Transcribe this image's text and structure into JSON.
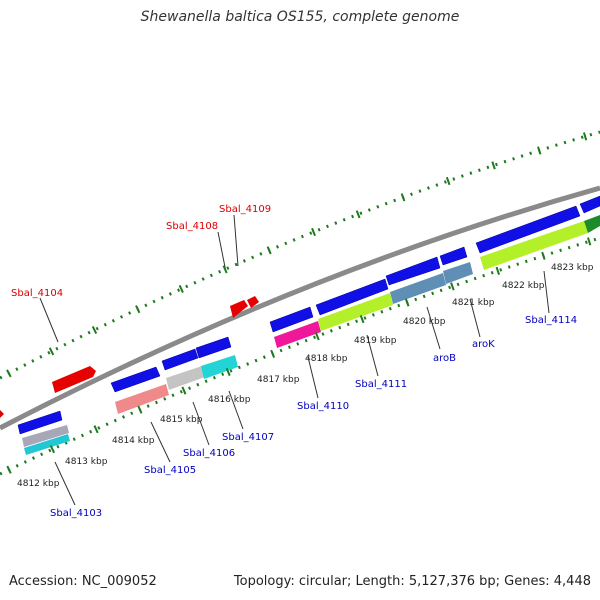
{
  "title": "Shewanella baltica OS155, complete genome",
  "footer": {
    "accession": "Accession: NC_009052",
    "topology": "Topology: circular; Length: 5,127,376 bp; Genes: 4,448"
  },
  "colors": {
    "backbone": "#8a8a8a",
    "tick": "#1f7a1f",
    "label_red": "#dd0000",
    "label_blue": "#0000c0",
    "scale_text": "#222222"
  },
  "scale_labels": [
    "4812 kbp",
    "4813 kbp",
    "4814 kbp",
    "4815 kbp",
    "4816 kbp",
    "4817 kbp",
    "4818 kbp",
    "4819 kbp",
    "4820 kbp",
    "4821 kbp",
    "4822 kbp",
    "4823 kbp"
  ],
  "gene_labels": {
    "forward": [
      "Sbal_4104",
      "Sbal_4108",
      "Sbal_4109"
    ],
    "reverse": [
      "Sbal_4103",
      "Sbal_4105",
      "Sbal_4106",
      "Sbal_4107",
      "Sbal_4110",
      "Sbal_4111",
      "aroB",
      "aroK",
      "Sbal_4114"
    ]
  }
}
